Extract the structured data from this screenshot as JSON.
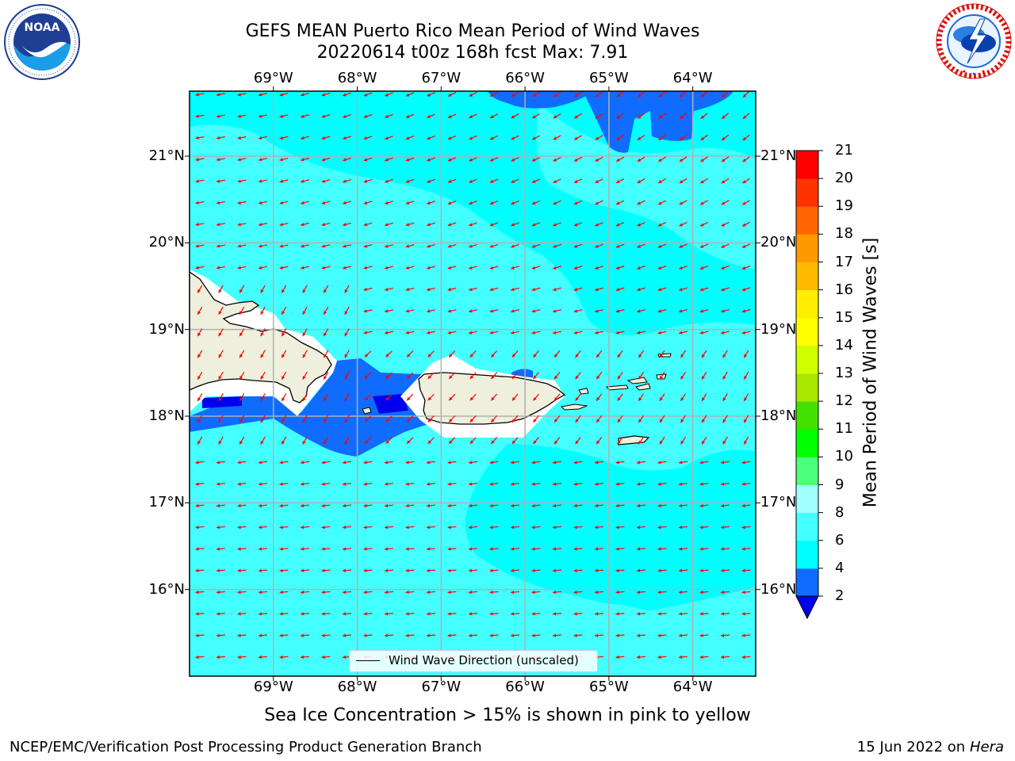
{
  "header": {
    "title_line1": "GEFS MEAN Puerto Rico Mean Period of Wind Waves",
    "title_line2": "20220614 t00z 168h fcst   Max: 7.91"
  },
  "logos": {
    "left": "noaa-logo",
    "right": "national-weather-service-logo"
  },
  "map": {
    "lon_ticks": [
      "69°W",
      "68°W",
      "67°W",
      "66°W",
      "65°W",
      "64°W"
    ],
    "lon_values": [
      -69,
      -68,
      -67,
      -66,
      -65,
      -64
    ],
    "lat_ticks": [
      "21°N",
      "20°N",
      "19°N",
      "18°N",
      "17°N",
      "16°N"
    ],
    "lat_values": [
      21,
      20,
      19,
      18,
      17,
      16
    ],
    "extent": {
      "lon": [
        -70,
        -63.25
      ],
      "lat": [
        15,
        21.75
      ]
    },
    "legend_label": "Wind Wave Direction (unscaled)",
    "arrow_color": "#ff0000",
    "land_color": "#efefdd"
  },
  "colorbar": {
    "title": "Mean Period of Wind Waves [s]",
    "labels": [
      "21",
      "20",
      "19",
      "18",
      "17",
      "16",
      "15",
      "14",
      "13",
      "12",
      "11",
      "10",
      "9",
      "8",
      "6",
      "4",
      "2"
    ],
    "boundaries": [
      2,
      4,
      6,
      8,
      9,
      10,
      11,
      12,
      13,
      14,
      15,
      16,
      17,
      18,
      19,
      20,
      21
    ],
    "colors": [
      "#0f6cff",
      "#00ffff",
      "#44ffff",
      "#a0ffff",
      "#4cff7c",
      "#00ff00",
      "#44e000",
      "#a8e800",
      "#d0ff00",
      "#ffff00",
      "#ffee00",
      "#ffbb00",
      "#ff9900",
      "#ff6600",
      "#ff3300",
      "#ff0000"
    ],
    "under_color": "#0000ee"
  },
  "chart_data": {
    "type": "heatmap",
    "title": "GEFS MEAN Puerto Rico Mean Period of Wind Waves",
    "subtitle": "20220614 t00z 168h fcst   Max: 7.91",
    "variable": "Mean Period of Wind Waves [s]",
    "max_value": 7.91,
    "xlim": [
      -70,
      -63.25
    ],
    "ylim": [
      15,
      21.75
    ],
    "wind_wave_direction": "mostly toward west / south-west",
    "legend": [
      "Wind Wave Direction (unscaled)"
    ]
  },
  "caption": "Sea Ice Concentration > 15% is shown in pink to yellow",
  "footer": {
    "left": "NCEP/EMC/Verification Post Processing Product Generation Branch",
    "right_date": "15 Jun 2022 on",
    "right_machine": "Hera"
  }
}
